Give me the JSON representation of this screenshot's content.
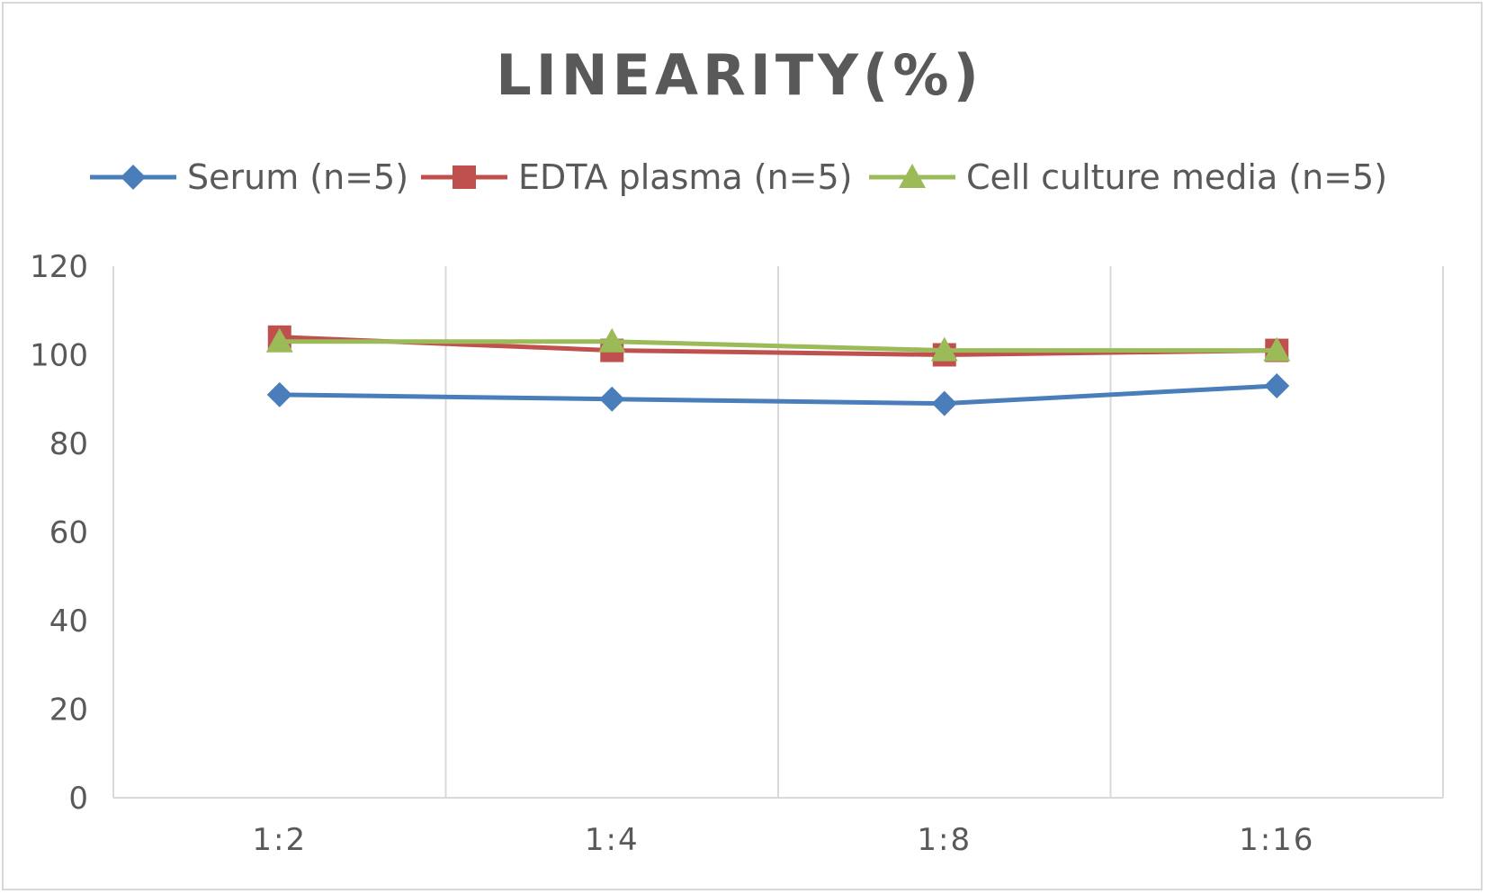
{
  "chart_data": {
    "type": "line",
    "title": "LINEARITY(%)",
    "xlabel": "",
    "ylabel": "",
    "categories": [
      "1:2",
      "1:4",
      "1:8",
      "1:16"
    ],
    "ylim": [
      0,
      120
    ],
    "yticks": [
      0,
      20,
      40,
      60,
      80,
      100,
      120
    ],
    "grid": "vertical",
    "legend_position": "top",
    "series": [
      {
        "name": "Serum (n=5)",
        "values": [
          91,
          90,
          89,
          93
        ],
        "color": "#4a7ebb",
        "marker": "diamond"
      },
      {
        "name": "EDTA plasma (n=5)",
        "values": [
          104,
          101,
          100,
          101
        ],
        "color": "#c0504d",
        "marker": "square"
      },
      {
        "name": "Cell culture media (n=5)",
        "values": [
          103,
          103,
          101,
          101
        ],
        "color": "#9bbb59",
        "marker": "triangle"
      }
    ]
  }
}
